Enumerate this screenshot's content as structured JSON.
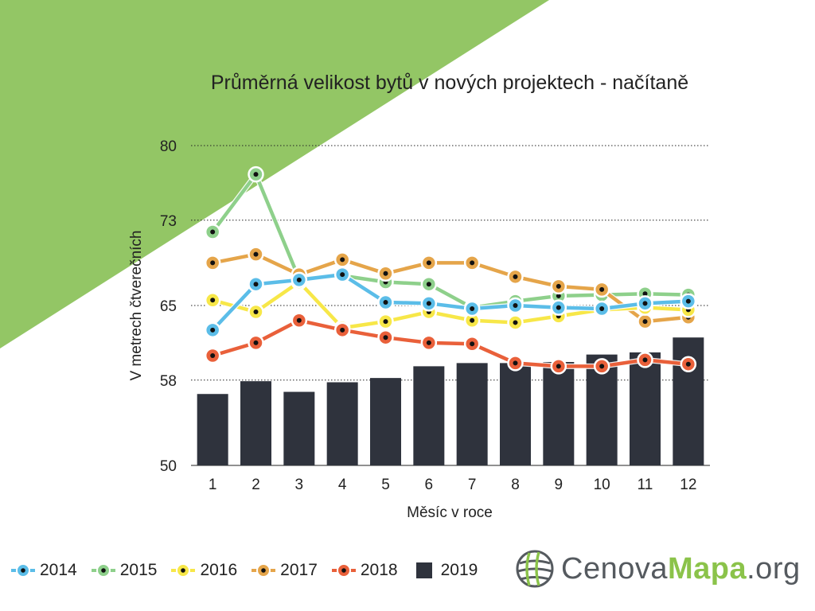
{
  "chart_data": {
    "type": "line",
    "title": "Průměrná velikost bytů v nových projektech - načítaně",
    "xlabel": "Měsíc v roce",
    "ylabel": "V metrech čtverečních",
    "categories": [
      "1",
      "2",
      "3",
      "4",
      "5",
      "6",
      "7",
      "8",
      "9",
      "10",
      "11",
      "12"
    ],
    "yticks": [
      "50",
      "58",
      "65",
      "73",
      "80"
    ],
    "ylim": [
      50,
      80
    ],
    "grid": "horizontal dotted",
    "legend_position": "bottom-left",
    "series": [
      {
        "name": "2019",
        "kind": "bar",
        "color": "#2f333d",
        "values": [
          56.7,
          57.9,
          56.9,
          57.8,
          58.2,
          59.3,
          59.6,
          59.6,
          59.7,
          60.4,
          60.6,
          62.0
        ]
      },
      {
        "name": "2015",
        "kind": "line",
        "color": "#8ed08b",
        "values": [
          71.9,
          77.3,
          67.5,
          67.8,
          67.2,
          67.0,
          64.8,
          65.4,
          65.9,
          66.0,
          66.1,
          66.0
        ]
      },
      {
        "name": "2017",
        "kind": "line",
        "color": "#e5a54a",
        "values": [
          69.0,
          69.8,
          67.9,
          69.3,
          68.0,
          69.0,
          69.0,
          67.7,
          66.8,
          66.5,
          63.5,
          63.9
        ]
      },
      {
        "name": "2016",
        "kind": "line",
        "color": "#f7e748",
        "values": [
          65.5,
          64.4,
          67.2,
          62.9,
          63.5,
          64.4,
          63.6,
          63.4,
          64.0,
          64.6,
          64.8,
          64.6
        ]
      },
      {
        "name": "2014",
        "kind": "line",
        "color": "#5bbde8",
        "values": [
          62.7,
          67.0,
          67.4,
          67.9,
          65.3,
          65.2,
          64.7,
          65.0,
          64.8,
          64.7,
          65.2,
          65.4
        ]
      },
      {
        "name": "2018",
        "kind": "line",
        "color": "#e9603a",
        "values": [
          60.3,
          61.5,
          63.6,
          62.7,
          62.0,
          61.5,
          61.4,
          59.6,
          59.3,
          59.3,
          59.9,
          59.5
        ]
      }
    ],
    "legend_order": [
      "2014",
      "2015",
      "2016",
      "2017",
      "2018",
      "2019"
    ]
  },
  "colors": {
    "background_corner": "#93c665",
    "grid": "#222222",
    "logo_accent": "#8bc34a",
    "logo_text": "#555a5f"
  },
  "logo": {
    "part_a": "Cenova",
    "part_b": "Mapa",
    "part_c": ".org",
    "icon": "globe-grid-icon"
  }
}
